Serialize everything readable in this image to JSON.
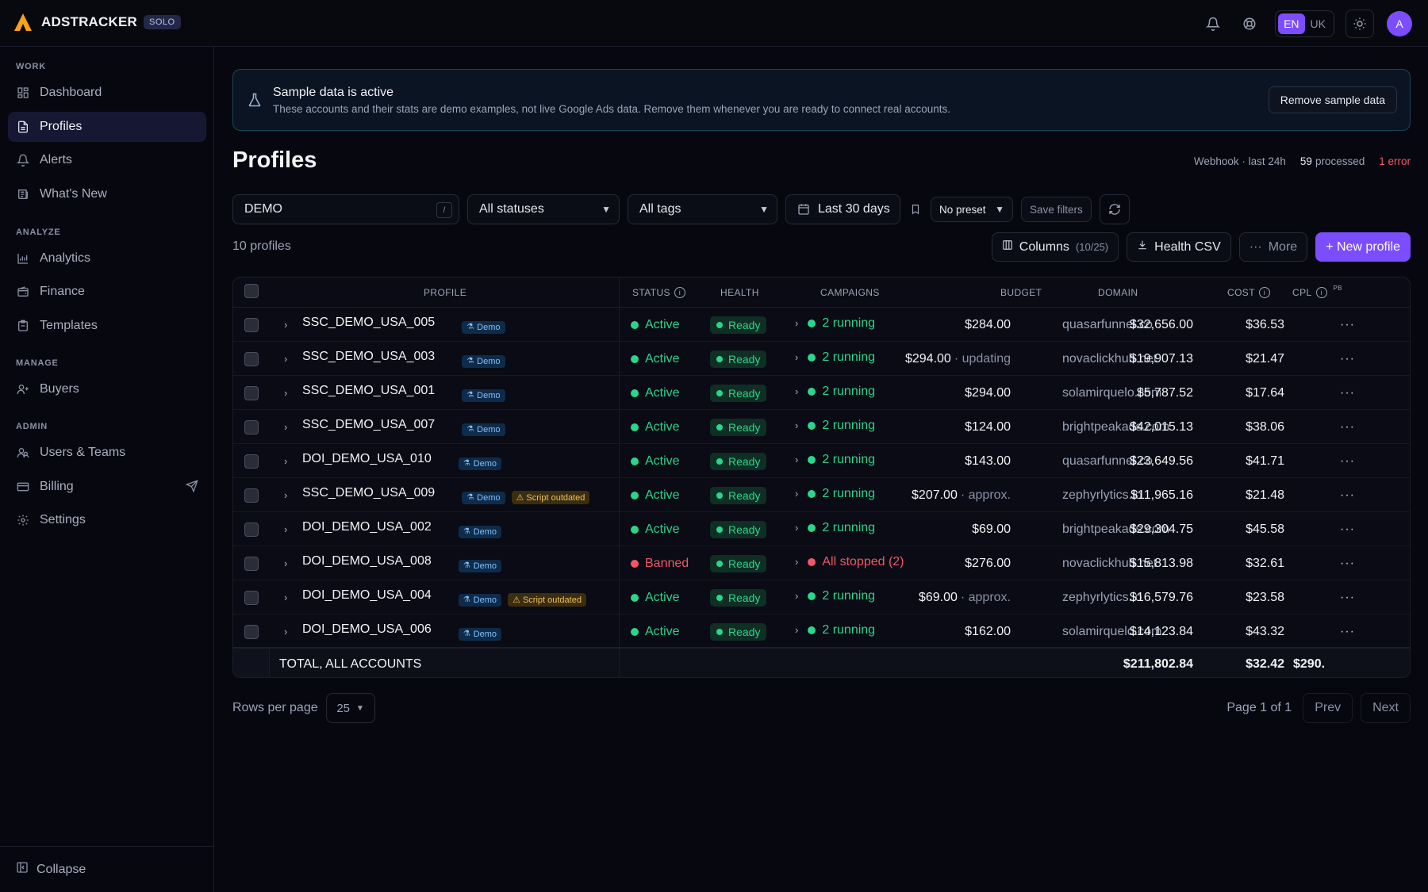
{
  "app": {
    "name": "ADSTRACKER",
    "plan": "SOLO"
  },
  "header": {
    "languages": [
      "EN",
      "UK"
    ],
    "active_language": "EN",
    "avatar_initial": "A"
  },
  "sidebar": {
    "sections": [
      {
        "title": "WORK",
        "items": [
          {
            "label": "Dashboard",
            "icon": "dashboard-icon"
          },
          {
            "label": "Profiles",
            "icon": "file-icon",
            "active": true
          },
          {
            "label": "Alerts",
            "icon": "bell-icon"
          },
          {
            "label": "What's New",
            "icon": "newspaper-icon"
          }
        ]
      },
      {
        "title": "ANALYZE",
        "items": [
          {
            "label": "Analytics",
            "icon": "bar-chart-icon"
          },
          {
            "label": "Finance",
            "icon": "wallet-icon"
          },
          {
            "label": "Templates",
            "icon": "clipboard-icon"
          }
        ]
      },
      {
        "title": "MANAGE",
        "items": [
          {
            "label": "Buyers",
            "icon": "user-plus-icon"
          }
        ]
      },
      {
        "title": "ADMIN",
        "items": [
          {
            "label": "Users & Teams",
            "icon": "users-icon"
          },
          {
            "label": "Billing",
            "icon": "credit-card-icon"
          },
          {
            "label": "Settings",
            "icon": "gear-icon"
          }
        ]
      }
    ],
    "collapse_label": "Collapse"
  },
  "banner": {
    "title": "Sample data is active",
    "text": "These accounts and their stats are demo examples, not live Google Ads data. Remove them whenever you are ready to connect real accounts.",
    "button": "Remove sample data"
  },
  "page": {
    "title": "Profiles",
    "webhook_label": "Webhook · last 24h",
    "processed_count": "59",
    "processed_label": "processed",
    "error_label": "1 error"
  },
  "filters": {
    "search_value": "DEMO",
    "search_shortcut": "/",
    "status": "All statuses",
    "tags": "All tags",
    "date_range": "Last 30 days",
    "preset": "No preset",
    "save_filters": "Save filters"
  },
  "toolbar": {
    "count_label": "10 profiles",
    "columns_label": "Columns",
    "columns_count": "(10/25)",
    "health_csv": "Health CSV",
    "more": "More",
    "new_profile": "+ New profile"
  },
  "table": {
    "headers": {
      "profile": "PROFILE",
      "status": "STATUS",
      "health": "HEALTH",
      "campaigns": "CAMPAIGNS",
      "budget": "BUDGET",
      "domain": "DOMAIN",
      "cost": "COST",
      "cpl": "CPL",
      "pb": "PB"
    },
    "rows": [
      {
        "name": "SSC_DEMO_USA_005",
        "tag": "Demo",
        "warn": "",
        "status": "Active",
        "health": "Ready",
        "campaigns": "2 running",
        "budget": "$284.00",
        "budget_note": "",
        "domain": "quasarfunnel.co",
        "cost": "$32,656.00",
        "cpl": "$36.53"
      },
      {
        "name": "SSC_DEMO_USA_003",
        "tag": "Demo",
        "warn": "",
        "status": "Active",
        "health": "Ready",
        "campaigns": "2 running",
        "budget": "$294.00",
        "budget_note": "· updating",
        "domain": "novaclickhub.net",
        "cost": "$19,907.13",
        "cpl": "$21.47"
      },
      {
        "name": "SSC_DEMO_USA_001",
        "tag": "Demo",
        "warn": "",
        "status": "Active",
        "health": "Ready",
        "campaigns": "2 running",
        "budget": "$294.00",
        "budget_note": "",
        "domain": "solamirquelo.com",
        "cost": "$5,787.52",
        "cpl": "$17.64"
      },
      {
        "name": "SSC_DEMO_USA_007",
        "tag": "Demo",
        "warn": "",
        "status": "Active",
        "health": "Ready",
        "campaigns": "2 running",
        "budget": "$124.00",
        "budget_note": "",
        "domain": "brightpeakads.com",
        "cost": "$42,015.13",
        "cpl": "$38.06"
      },
      {
        "name": "DOI_DEMO_USA_010",
        "tag": "Demo",
        "warn": "",
        "status": "Active",
        "health": "Ready",
        "campaigns": "2 running",
        "budget": "$143.00",
        "budget_note": "",
        "domain": "quasarfunnel.co",
        "cost": "$23,649.56",
        "cpl": "$41.71"
      },
      {
        "name": "SSC_DEMO_USA_009",
        "tag": "Demo",
        "warn": "Script outdated",
        "status": "Active",
        "health": "Ready",
        "campaigns": "2 running",
        "budget": "$207.00",
        "budget_note": "· approx.",
        "domain": "zephyrlytics.io",
        "cost": "$11,965.16",
        "cpl": "$21.48"
      },
      {
        "name": "DOI_DEMO_USA_002",
        "tag": "Demo",
        "warn": "",
        "status": "Active",
        "health": "Ready",
        "campaigns": "2 running",
        "budget": "$69.00",
        "budget_note": "",
        "domain": "brightpeakads.com",
        "cost": "$29,304.75",
        "cpl": "$45.58"
      },
      {
        "name": "DOI_DEMO_USA_008",
        "tag": "Demo",
        "warn": "",
        "status": "Banned",
        "health": "Ready",
        "campaigns": "All stopped (2)",
        "budget": "$276.00",
        "budget_note": "",
        "domain": "novaclickhub.net",
        "cost": "$15,813.98",
        "cpl": "$32.61"
      },
      {
        "name": "DOI_DEMO_USA_004",
        "tag": "Demo",
        "warn": "Script outdated",
        "status": "Active",
        "health": "Ready",
        "campaigns": "2 running",
        "budget": "$69.00",
        "budget_note": "· approx.",
        "domain": "zephyrlytics.io",
        "cost": "$16,579.76",
        "cpl": "$23.58"
      },
      {
        "name": "DOI_DEMO_USA_006",
        "tag": "Demo",
        "warn": "",
        "status": "Active",
        "health": "Ready",
        "campaigns": "2 running",
        "budget": "$162.00",
        "budget_note": "",
        "domain": "solamirquelo.com",
        "cost": "$14,123.84",
        "cpl": "$43.32"
      }
    ],
    "total": {
      "label": "TOTAL, ALL ACCOUNTS",
      "cost": "$211,802.84",
      "cpl": "$32.42",
      "pb": "$290."
    }
  },
  "pagination": {
    "rows_per_page_label": "Rows per page",
    "rows_per_page_value": "25",
    "page_info": "Page 1 of 1",
    "prev": "Prev",
    "next": "Next"
  },
  "colors": {
    "accent": "#7c4dff",
    "success": "#2bd58a",
    "danger": "#f25767",
    "demo_tag": "#7fc1ff",
    "warning": "#f0c060"
  }
}
